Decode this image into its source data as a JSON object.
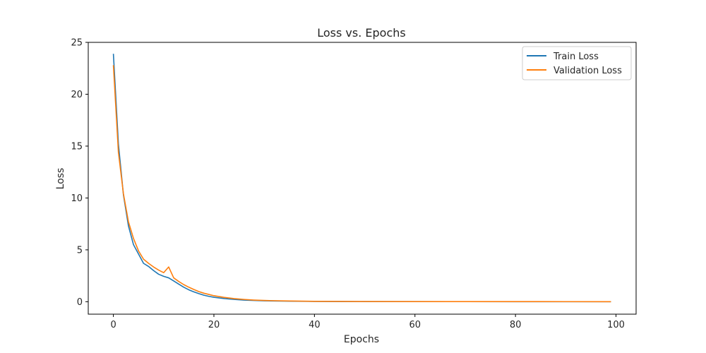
{
  "chart_data": {
    "type": "line",
    "title": "Loss vs. Epochs",
    "xlabel": "Epochs",
    "ylabel": "Loss",
    "xlim": [
      -5,
      104
    ],
    "ylim": [
      -1.2,
      25.0
    ],
    "xticks": [
      0,
      20,
      40,
      60,
      80,
      100
    ],
    "yticks": [
      0,
      5,
      10,
      15,
      20,
      25
    ],
    "grid": false,
    "legend_position": "top-right",
    "series": [
      {
        "name": "Train Loss",
        "color": "#1f77b4",
        "x": [
          0,
          1,
          2,
          3,
          4,
          5,
          6,
          7,
          8,
          9,
          10,
          11,
          12,
          13,
          14,
          15,
          16,
          17,
          18,
          19,
          20,
          22,
          24,
          26,
          28,
          30,
          35,
          40,
          45,
          50,
          60,
          70,
          80,
          90,
          99
        ],
        "values": [
          23.9,
          15.2,
          10.3,
          7.3,
          5.5,
          4.6,
          3.7,
          3.4,
          3.0,
          2.65,
          2.45,
          2.3,
          2.0,
          1.7,
          1.4,
          1.15,
          0.95,
          0.78,
          0.63,
          0.52,
          0.43,
          0.31,
          0.22,
          0.16,
          0.12,
          0.09,
          0.05,
          0.03,
          0.02,
          0.015,
          0.01,
          0.008,
          0.006,
          0.005,
          0.004
        ]
      },
      {
        "name": "Validation Loss",
        "color": "#ff7f0e",
        "x": [
          0,
          1,
          2,
          3,
          4,
          5,
          6,
          7,
          8,
          9,
          10,
          11,
          12,
          13,
          14,
          15,
          16,
          17,
          18,
          19,
          20,
          22,
          24,
          26,
          28,
          30,
          35,
          40,
          45,
          50,
          60,
          70,
          80,
          90,
          99
        ],
        "values": [
          22.8,
          14.4,
          10.4,
          7.7,
          6.1,
          4.9,
          4.1,
          3.7,
          3.35,
          3.05,
          2.8,
          3.35,
          2.3,
          1.95,
          1.65,
          1.4,
          1.18,
          0.98,
          0.82,
          0.7,
          0.58,
          0.42,
          0.3,
          0.22,
          0.16,
          0.12,
          0.07,
          0.04,
          0.03,
          0.02,
          0.015,
          0.012,
          0.01,
          0.008,
          0.006
        ]
      }
    ]
  }
}
